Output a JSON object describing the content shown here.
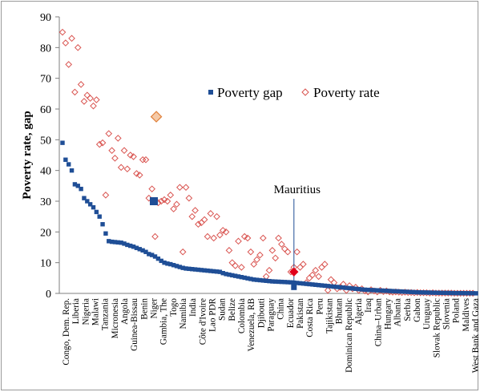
{
  "chart_data": {
    "type": "scatter",
    "ylabel": "Poverty rate, gap",
    "ylim": [
      0,
      90
    ],
    "yticks": [
      0,
      10,
      20,
      30,
      40,
      50,
      60,
      70,
      80,
      90
    ],
    "grid": false,
    "legend_position": "center",
    "categories": [
      "Congo, Dem. Rep.",
      "Liberia",
      "Nigeria",
      "Malawi",
      "Tanzania",
      "Micronesia",
      "Angola",
      "Guinea-Bissau",
      "Benin",
      "Niger",
      "Gambia, The",
      "Togo",
      "Namibia",
      "India",
      "Côte d'Ivoire",
      "Lao PDR",
      "Sudan",
      "Belize",
      "Colombia",
      "Venezuela, RB",
      "Djibouti",
      "Paraguay",
      "China",
      "Ecuador",
      "Pakistan",
      "Costa Rica",
      "Peru",
      "Tajikistan",
      "Bhutan",
      "Dominican Republic",
      "Algeria",
      "Iraq",
      "China–Urban",
      "Hungary",
      "Albania",
      "Serbia",
      "Gabon",
      "Uruguay",
      "Slovak Republic",
      "Slovenia",
      "Poland",
      "Maldives",
      "West Bank and Gaza"
    ],
    "series": [
      {
        "name": "Poverty gap",
        "color": "#1f4e96",
        "marker": "square",
        "values": [
          49,
          43.5,
          42,
          40,
          35.5,
          35,
          34,
          31,
          30,
          29,
          28,
          26.5,
          25,
          22.5,
          19.5,
          17,
          16.8,
          16.7,
          16.6,
          16.5,
          16.2,
          15.8,
          15.5,
          15.2,
          14.8,
          14.4,
          14,
          13.5,
          12.8,
          12.5,
          12,
          11.3,
          10.6,
          10,
          9.7,
          9.5,
          9.2,
          8.9,
          8.6,
          8.3,
          8.1,
          8,
          7.9,
          7.8,
          7.7,
          7.6,
          7.5,
          7.4,
          7.3,
          7.2,
          7.1,
          7,
          6.6,
          6.3,
          6.1,
          5.9,
          5.7,
          5.5,
          5.3,
          5.1,
          4.9,
          4.7,
          4.5,
          4.4,
          4.3,
          4.2,
          4.1,
          4,
          3.9,
          3.85,
          3.8,
          3.75,
          3.7,
          3.65,
          3.6,
          3.5,
          3.4,
          3.3,
          3.2,
          3.1,
          3,
          2.9,
          2.8,
          2.7,
          2.6,
          2.5,
          2.4,
          2.3,
          2.2,
          2.1,
          2,
          1.9,
          1.8,
          1.7,
          1.6,
          1.5,
          1.4,
          1.3,
          1.2,
          1.15,
          1.1,
          1.05,
          1,
          0.95,
          0.9,
          0.85,
          0.8,
          0.75,
          0.7,
          0.65,
          0.6,
          0.55,
          0.5,
          0.45,
          0.4,
          0.35,
          0.32,
          0.3,
          0.28,
          0.26,
          0.24,
          0.22,
          0.2,
          0.18,
          0.16,
          0.14,
          0.12,
          0.1,
          0.09,
          0.08,
          0.07,
          0.06,
          0.05,
          0.04,
          0.03
        ]
      },
      {
        "name": "Poverty rate",
        "color": "#d9534f",
        "marker": "diamond",
        "values": [
          85,
          81.5,
          74.5,
          83,
          65.5,
          80,
          68,
          62.5,
          64.5,
          63.5,
          61,
          63,
          48.5,
          49,
          32,
          52,
          46.5,
          44,
          50.5,
          41,
          46.5,
          40.5,
          45,
          44.5,
          39,
          38.5,
          43.5,
          43.5,
          31,
          34,
          18.5,
          29.5,
          30,
          30.5,
          30,
          32,
          27.5,
          29,
          34.5,
          13.5,
          34.5,
          31,
          25,
          27,
          22.5,
          23,
          24,
          18.5,
          26,
          18,
          25,
          19,
          20.5,
          20,
          14,
          10,
          9,
          17,
          8.5,
          18.5,
          18,
          13.5,
          9.5,
          11,
          12.5,
          18,
          5.5,
          7.5,
          14,
          11.5,
          18,
          16,
          14.5,
          13.5,
          7,
          8.5,
          13.5,
          8.5,
          9.5,
          3.5,
          5,
          6,
          7.5,
          5.5,
          8.5,
          9.5,
          1,
          4.5,
          3.5,
          1.5,
          2,
          3,
          1,
          2.5,
          1.5,
          2,
          1,
          1.5,
          0.8,
          0.5,
          1.2,
          0.8,
          0.5,
          1,
          0.6,
          0.8,
          0.5,
          0.4,
          0.5,
          0.4,
          0.3,
          0.4,
          0.3,
          0.3,
          0.2,
          0.3,
          0.2,
          0.2,
          0.2,
          0.1,
          0.2,
          0.1,
          0.1,
          0.1,
          0.1,
          0.1,
          0.1,
          0.05,
          0.05,
          0.05,
          0.05,
          0.05,
          0.05,
          0.05
        ]
      }
    ],
    "highlights": [
      {
        "series": "Poverty gap",
        "index": 29.6,
        "value": 30
      },
      {
        "series": "Poverty rate",
        "index": 30.4,
        "value": 57.5
      }
    ],
    "annotation": {
      "text": "Mauritius",
      "gap": 2,
      "rate": 7
    }
  }
}
